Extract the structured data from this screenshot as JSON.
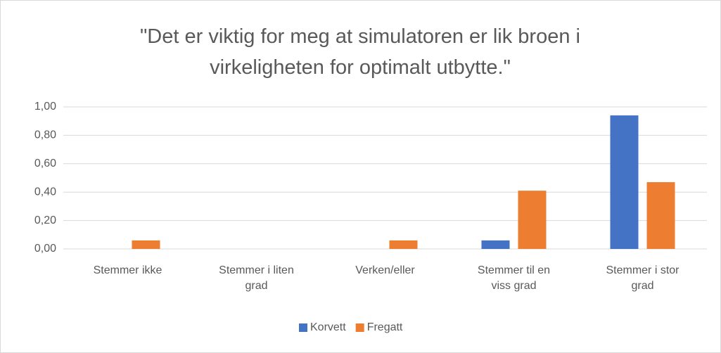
{
  "chart_data": {
    "type": "bar",
    "title": "\"Det er viktig for meg at simulatoren er lik broen i virkeligheten for optimalt utbytte.\"",
    "categories": [
      "Stemmer ikke",
      "Stemmer i liten grad",
      "Verken/eller",
      "Stemmer til en viss grad",
      "Stemmer i stor grad"
    ],
    "series": [
      {
        "name": "Korvett",
        "color": "#4472c4",
        "values": [
          0,
          0,
          0,
          0.06,
          0.94
        ]
      },
      {
        "name": "Fregatt",
        "color": "#ed7d31",
        "values": [
          0.06,
          0,
          0.06,
          0.41,
          0.47
        ]
      }
    ],
    "ylim": [
      0,
      1
    ],
    "yticks": [
      {
        "value": 0,
        "label": "0,00"
      },
      {
        "value": 0.2,
        "label": "0,20"
      },
      {
        "value": 0.4,
        "label": "0,40"
      },
      {
        "value": 0.6,
        "label": "0,60"
      },
      {
        "value": 0.8,
        "label": "0,80"
      },
      {
        "value": 1,
        "label": "1,00"
      }
    ],
    "grid": true,
    "legend": "bottom"
  }
}
